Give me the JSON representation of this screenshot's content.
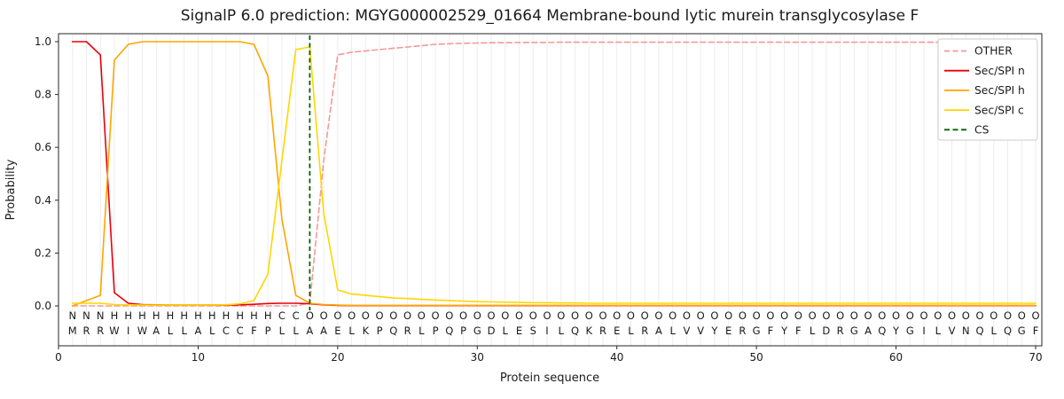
{
  "chart_data": {
    "type": "line",
    "title": "SignalP 6.0 prediction: MGYG000002529_01664 Membrane-bound lytic murein transglycosylase F",
    "xlabel": "Protein sequence",
    "ylabel": "Probability",
    "xticks": [
      0,
      10,
      20,
      30,
      40,
      50,
      60,
      70
    ],
    "yticks": [
      0.0,
      0.2,
      0.4,
      0.6,
      0.8,
      1.0
    ],
    "xlim": [
      0,
      70.5
    ],
    "ylim": [
      0,
      1.05
    ],
    "grid": "vertical-per-residue",
    "legend_position": "upper-right",
    "series": [
      {
        "name": "OTHER",
        "color": "#f49999",
        "dash": true,
        "values": [
          0,
          0,
          0,
          0,
          0,
          0,
          0,
          0,
          0,
          0,
          0,
          0,
          0,
          0,
          0,
          0,
          0,
          0.01,
          0.55,
          0.95,
          0.96,
          0.965,
          0.97,
          0.975,
          0.98,
          0.985,
          0.99,
          0.992,
          0.994,
          0.995,
          0.996,
          0.996,
          0.997,
          0.997,
          0.997,
          0.998,
          0.998,
          0.998,
          0.998,
          0.998,
          0.998,
          0.998,
          0.998,
          0.998,
          0.998,
          0.998,
          0.998,
          0.998,
          0.998,
          0.998,
          0.998,
          0.998,
          0.998,
          0.998,
          0.998,
          0.998,
          0.998,
          0.998,
          0.998,
          0.998,
          0.998,
          0.998,
          0.998,
          0.998,
          0.998,
          0.998,
          0.998,
          0.998,
          0.998,
          0.998
        ]
      },
      {
        "name": "Sec/SPI n",
        "color": "#e8000b",
        "dash": false,
        "values": [
          1.0,
          1.0,
          0.95,
          0.05,
          0.01,
          0.005,
          0.004,
          0.003,
          0.003,
          0.003,
          0.003,
          0.003,
          0.004,
          0.006,
          0.009,
          0.01,
          0.01,
          0.008,
          0.004,
          0.002,
          0.001,
          0.001,
          0.001,
          0.001,
          0.001,
          0.001,
          0.001,
          0.001,
          0.001,
          0.001,
          0.001,
          0.001,
          0.001,
          0.001,
          0.001,
          0.001,
          0.001,
          0.001,
          0.001,
          0.001,
          0.001,
          0.001,
          0.001,
          0.001,
          0.001,
          0.001,
          0.001,
          0.001,
          0.001,
          0.001,
          0.001,
          0.001,
          0.001,
          0.001,
          0.001,
          0.001,
          0.001,
          0.001,
          0.001,
          0.001,
          0.001,
          0.001,
          0.001,
          0.001,
          0.001,
          0.001,
          0.001,
          0.001,
          0.001,
          0.001
        ]
      },
      {
        "name": "Sec/SPI h",
        "color": "#ffa500",
        "dash": false,
        "values": [
          0.0,
          0.02,
          0.04,
          0.93,
          0.99,
          1.0,
          1.0,
          1.0,
          1.0,
          1.0,
          1.0,
          1.0,
          1.0,
          0.99,
          0.87,
          0.33,
          0.04,
          0.01,
          0.005,
          0.003,
          0.002,
          0.002,
          0.002,
          0.002,
          0.002,
          0.002,
          0.002,
          0.002,
          0.002,
          0.002,
          0.002,
          0.002,
          0.002,
          0.002,
          0.002,
          0.002,
          0.002,
          0.002,
          0.002,
          0.002,
          0.002,
          0.002,
          0.002,
          0.002,
          0.002,
          0.002,
          0.002,
          0.002,
          0.002,
          0.002,
          0.002,
          0.002,
          0.002,
          0.002,
          0.002,
          0.002,
          0.002,
          0.002,
          0.002,
          0.002,
          0.002,
          0.002,
          0.002,
          0.002,
          0.002,
          0.002,
          0.002,
          0.002,
          0.002,
          0.002
        ]
      },
      {
        "name": "Sec/SPI c",
        "color": "#ffd700",
        "dash": false,
        "values": [
          0.01,
          0.01,
          0.01,
          0.005,
          0.004,
          0.003,
          0.003,
          0.003,
          0.003,
          0.003,
          0.003,
          0.004,
          0.008,
          0.02,
          0.12,
          0.55,
          0.97,
          0.98,
          0.35,
          0.06,
          0.045,
          0.04,
          0.035,
          0.03,
          0.028,
          0.025,
          0.022,
          0.02,
          0.018,
          0.016,
          0.015,
          0.014,
          0.013,
          0.012,
          0.012,
          0.011,
          0.011,
          0.01,
          0.01,
          0.01,
          0.01,
          0.01,
          0.01,
          0.01,
          0.01,
          0.01,
          0.01,
          0.01,
          0.01,
          0.01,
          0.01,
          0.01,
          0.01,
          0.01,
          0.01,
          0.01,
          0.01,
          0.01,
          0.01,
          0.01,
          0.01,
          0.01,
          0.01,
          0.01,
          0.01,
          0.01,
          0.01,
          0.01,
          0.01,
          0.01
        ]
      }
    ],
    "cs_marker": {
      "label": "CS",
      "x": 18,
      "color": "#006400",
      "dash": true
    },
    "sequence": "MRRWIWALLALCCFPLLAAELKPQRLPQPGDLESILQKRELRALVVYERGFYFLDRGAQYGILVNQLQGF",
    "position_labels": "NNNHHHHHHHHHHHHCCOOOOOOOOOOOOOOOOOOOOOOOOOOOOOOOOOOOOOOOOOOOOOOOOOOOO",
    "label_colors": {
      "N": "#e8000b",
      "H": "#ffa500",
      "C": "#ffd700",
      "O": "#b5b5b5"
    },
    "colors": {
      "grid": "#ededed",
      "axis": "#262626",
      "residue_text": "#1a1a1a",
      "legend_border": "#cccccc",
      "background": "#ffffff"
    }
  }
}
